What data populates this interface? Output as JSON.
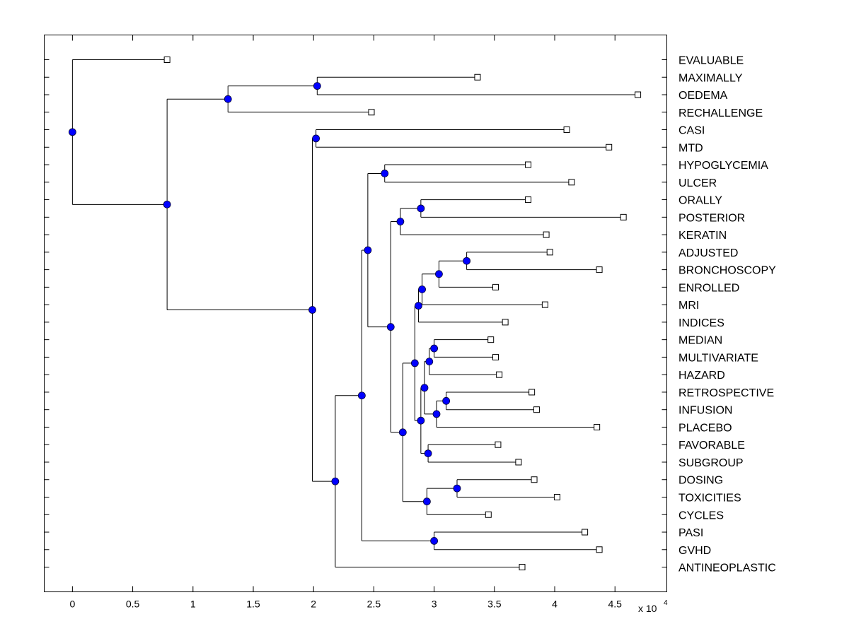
{
  "chart_data": {
    "type": "dendrogram",
    "title": "",
    "xlabel": "",
    "ylabel": "",
    "x_multiplier_label": "x 10",
    "x_multiplier_exponent": "4",
    "xlim": [
      -0.234,
      4.93
    ],
    "xticks": [
      0,
      0.5,
      1,
      1.5,
      2,
      2.5,
      3,
      3.5,
      4,
      4.5
    ],
    "xtick_labels": [
      "0",
      "0.5",
      "1",
      "1.5",
      "2",
      "2.5",
      "3",
      "3.5",
      "4",
      "4.5"
    ],
    "grid": false,
    "node_color": "#0000ff",
    "line_color": "#000000",
    "leaves": [
      {
        "label": "EVALUABLE",
        "x": 0.785
      },
      {
        "label": "MAXIMALLY",
        "x": 3.36
      },
      {
        "label": "OEDEMA",
        "x": 4.69
      },
      {
        "label": "RECHALLENGE",
        "x": 2.48
      },
      {
        "label": "CASI",
        "x": 4.1
      },
      {
        "label": "MTD",
        "x": 4.45
      },
      {
        "label": "HYPOGLYCEMIA",
        "x": 3.78
      },
      {
        "label": "ULCER",
        "x": 4.14
      },
      {
        "label": "ORALLY",
        "x": 3.78
      },
      {
        "label": "POSTERIOR",
        "x": 4.57
      },
      {
        "label": "KERATIN",
        "x": 3.93
      },
      {
        "label": "ADJUSTED",
        "x": 3.96
      },
      {
        "label": "BRONCHOSCOPY",
        "x": 4.37
      },
      {
        "label": "ENROLLED",
        "x": 3.51
      },
      {
        "label": "MRI",
        "x": 3.92
      },
      {
        "label": "INDICES",
        "x": 3.59
      },
      {
        "label": "MEDIAN",
        "x": 3.47
      },
      {
        "label": "MULTIVARIATE",
        "x": 3.51
      },
      {
        "label": "HAZARD",
        "x": 3.54
      },
      {
        "label": "RETROSPECTIVE",
        "x": 3.81
      },
      {
        "label": "INFUSION",
        "x": 3.85
      },
      {
        "label": "PLACEBO",
        "x": 4.35
      },
      {
        "label": "FAVORABLE",
        "x": 3.53
      },
      {
        "label": "SUBGROUP",
        "x": 3.7
      },
      {
        "label": "DOSING",
        "x": 3.83
      },
      {
        "label": "TOXICITIES",
        "x": 4.02
      },
      {
        "label": "CYCLES",
        "x": 3.45
      },
      {
        "label": "PASI",
        "x": 4.25
      },
      {
        "label": "GVHD",
        "x": 4.37
      },
      {
        "label": "ANTINEOPLASTIC",
        "x": 3.73
      }
    ],
    "tree": {
      "x": 0,
      "children": [
        {
          "leaf": 0
        },
        {
          "x": 0.785,
          "children": [
            {
              "x": 1.29,
              "children": [
                {
                  "x": 2.03,
                  "children": [
                    {
                      "leaf": 1
                    },
                    {
                      "leaf": 2
                    }
                  ]
                },
                {
                  "leaf": 3
                }
              ]
            },
            {
              "x": 1.99,
              "children": [
                {
                  "x": 2.02,
                  "children": [
                    {
                      "leaf": 4
                    },
                    {
                      "leaf": 5
                    }
                  ]
                },
                {
                  "x": 2.18,
                  "children": [
                    {
                      "x": 2.4,
                      "children": [
                        {
                          "x": 2.45,
                          "children": [
                            {
                              "x": 2.59,
                              "children": [
                                {
                                  "leaf": 6
                                },
                                {
                                  "leaf": 7
                                }
                              ]
                            },
                            {
                              "x": 2.64,
                              "children": [
                                {
                                  "x": 2.72,
                                  "children": [
                                    {
                                      "x": 2.89,
                                      "children": [
                                        {
                                          "leaf": 8
                                        },
                                        {
                                          "leaf": 9
                                        }
                                      ]
                                    },
                                    {
                                      "leaf": 10
                                    }
                                  ]
                                },
                                {
                                  "x": 2.74,
                                  "children": [
                                    {
                                      "x": 2.84,
                                      "children": [
                                        {
                                          "x": 2.87,
                                          "children": [
                                            {
                                              "x": 2.9,
                                              "children": [
                                                {
                                                  "x": 3.04,
                                                  "children": [
                                                    {
                                                      "x": 3.27,
                                                      "children": [
                                                        {
                                                          "leaf": 11
                                                        },
                                                        {
                                                          "leaf": 12
                                                        }
                                                      ]
                                                    },
                                                    {
                                                      "leaf": 13
                                                    }
                                                  ]
                                                },
                                                {
                                                  "leaf": 14
                                                }
                                              ]
                                            },
                                            {
                                              "leaf": 15
                                            }
                                          ]
                                        },
                                        {
                                          "x": 2.89,
                                          "children": [
                                            {
                                              "x": 2.92,
                                              "children": [
                                                {
                                                  "x": 2.96,
                                                  "children": [
                                                    {
                                                      "x": 3.0,
                                                      "children": [
                                                        {
                                                          "leaf": 16
                                                        },
                                                        {
                                                          "leaf": 17
                                                        }
                                                      ]
                                                    },
                                                    {
                                                      "leaf": 18
                                                    }
                                                  ]
                                                },
                                                {
                                                  "x": 3.02,
                                                  "children": [
                                                    {
                                                      "x": 3.1,
                                                      "children": [
                                                        {
                                                          "leaf": 19
                                                        },
                                                        {
                                                          "leaf": 20
                                                        }
                                                      ]
                                                    },
                                                    {
                                                      "leaf": 21
                                                    }
                                                  ]
                                                }
                                              ]
                                            },
                                            {
                                              "x": 2.95,
                                              "children": [
                                                {
                                                  "leaf": 22
                                                },
                                                {
                                                  "leaf": 23
                                                }
                                              ]
                                            }
                                          ]
                                        }
                                      ]
                                    },
                                    {
                                      "x": 2.94,
                                      "children": [
                                        {
                                          "x": 3.19,
                                          "children": [
                                            {
                                              "leaf": 24
                                            },
                                            {
                                              "leaf": 25
                                            }
                                          ]
                                        },
                                        {
                                          "leaf": 26
                                        }
                                      ]
                                    }
                                  ]
                                }
                              ]
                            }
                          ]
                        },
                        {
                          "x": 3.0,
                          "children": [
                            {
                              "leaf": 27
                            },
                            {
                              "leaf": 28
                            }
                          ]
                        }
                      ]
                    },
                    {
                      "leaf": 29
                    }
                  ]
                }
              ]
            }
          ]
        }
      ]
    }
  }
}
